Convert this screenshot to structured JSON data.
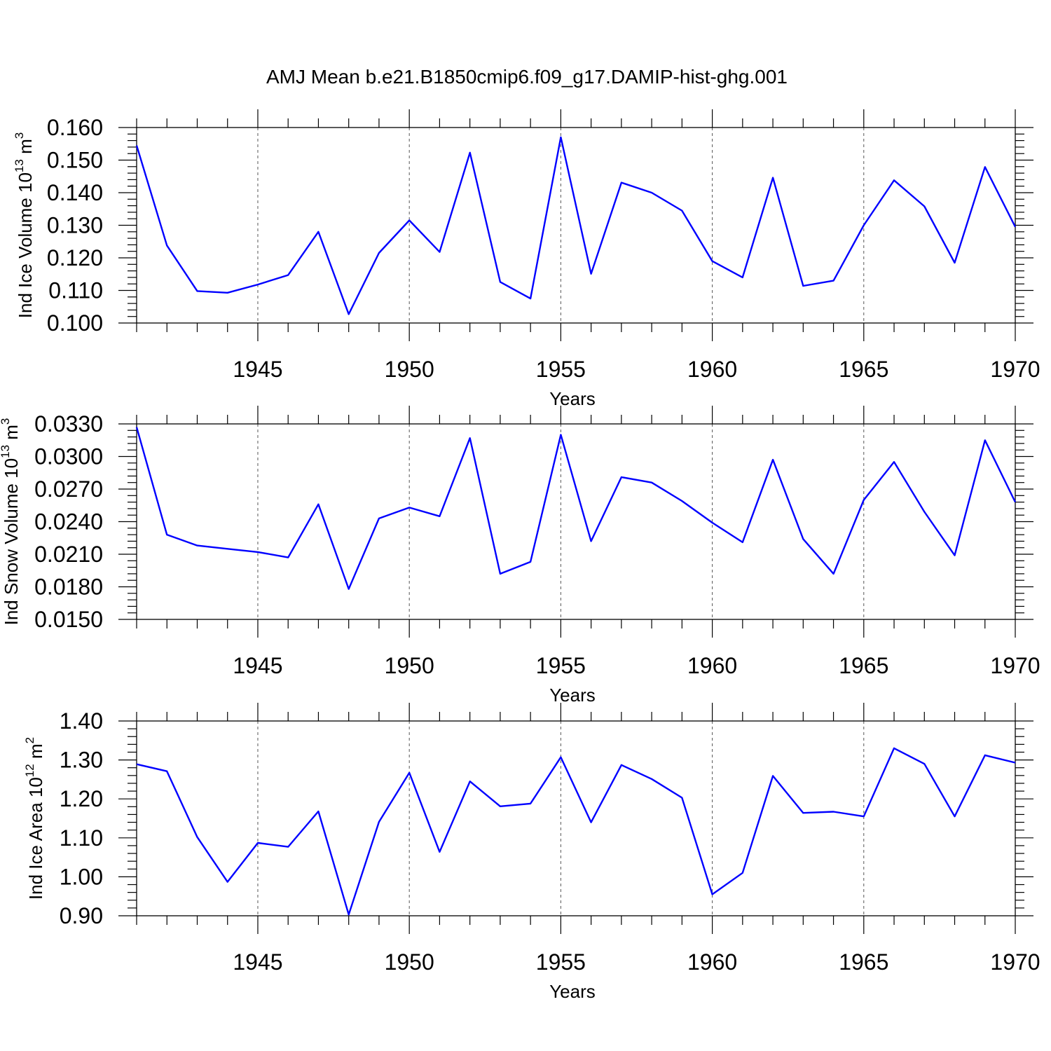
{
  "title": "AMJ Mean b.e21.B1850cmip6.f09_g17.DAMIP-hist-ghg.001",
  "line_color": "#0000ff",
  "chart_data": [
    {
      "type": "line",
      "ylabel": {
        "text": "Ind Ice Volume 10",
        "sup": "13",
        "unit": " m",
        "unit_sup": "3"
      },
      "xlabel": "Years",
      "x": [
        1941,
        1942,
        1943,
        1944,
        1945,
        1946,
        1947,
        1948,
        1949,
        1950,
        1951,
        1952,
        1953,
        1954,
        1955,
        1956,
        1957,
        1958,
        1959,
        1960,
        1961,
        1962,
        1963,
        1964,
        1965,
        1966,
        1967,
        1968,
        1969,
        1970
      ],
      "values": [
        0.1545,
        0.1238,
        0.1098,
        0.1093,
        0.1118,
        0.1147,
        0.128,
        0.1027,
        0.1215,
        0.1315,
        0.1218,
        0.1523,
        0.1126,
        0.1075,
        0.157,
        0.1151,
        0.1431,
        0.14,
        0.1345,
        0.119,
        0.114,
        0.1446,
        0.1114,
        0.113,
        0.13,
        0.1438,
        0.1358,
        0.1185,
        0.1479,
        0.1295
      ],
      "ylim": [
        0.1,
        0.16
      ],
      "yticks": [
        "0.100",
        "0.110",
        "0.120",
        "0.130",
        "0.140",
        "0.150",
        "0.160"
      ],
      "xlim": [
        1941,
        1970
      ],
      "xticks": [
        "1945",
        "1950",
        "1955",
        "1960",
        "1965",
        "1970"
      ],
      "grid": "vertical dashed at labeled years"
    },
    {
      "type": "line",
      "ylabel": {
        "text": "Ind Snow Volume 10",
        "sup": "13",
        "unit": " m",
        "unit_sup": "3"
      },
      "xlabel": "Years",
      "x": [
        1941,
        1942,
        1943,
        1944,
        1945,
        1946,
        1947,
        1948,
        1949,
        1950,
        1951,
        1952,
        1953,
        1954,
        1955,
        1956,
        1957,
        1958,
        1959,
        1960,
        1961,
        1962,
        1963,
        1964,
        1965,
        1966,
        1967,
        1968,
        1969,
        1970
      ],
      "values": [
        0.0327,
        0.0228,
        0.0218,
        0.0215,
        0.0212,
        0.0207,
        0.0256,
        0.0178,
        0.0243,
        0.0253,
        0.0245,
        0.0317,
        0.0192,
        0.0203,
        0.032,
        0.0222,
        0.0281,
        0.0276,
        0.0259,
        0.0239,
        0.0221,
        0.0297,
        0.0224,
        0.0192,
        0.026,
        0.0295,
        0.0249,
        0.0209,
        0.0315,
        0.0258
      ],
      "ylim": [
        0.015,
        0.033
      ],
      "yticks": [
        "0.0150",
        "0.0180",
        "0.0210",
        "0.0240",
        "0.0270",
        "0.0300",
        "0.0330"
      ],
      "xlim": [
        1941,
        1970
      ],
      "xticks": [
        "1945",
        "1950",
        "1955",
        "1960",
        "1965",
        "1970"
      ],
      "grid": "vertical dashed at labeled years"
    },
    {
      "type": "line",
      "ylabel": {
        "text": "Ind Ice Area 10",
        "sup": "12",
        "unit": " m",
        "unit_sup": "2"
      },
      "xlabel": "Years",
      "x": [
        1941,
        1942,
        1943,
        1944,
        1945,
        1946,
        1947,
        1948,
        1949,
        1950,
        1951,
        1952,
        1953,
        1954,
        1955,
        1956,
        1957,
        1958,
        1959,
        1960,
        1961,
        1962,
        1963,
        1964,
        1965,
        1966,
        1967,
        1968,
        1969,
        1970
      ],
      "values": [
        1.289,
        1.271,
        1.102,
        0.987,
        1.087,
        1.077,
        1.168,
        0.903,
        1.141,
        1.267,
        1.064,
        1.245,
        1.181,
        1.188,
        1.307,
        1.14,
        1.287,
        1.251,
        1.203,
        0.955,
        1.01,
        1.259,
        1.164,
        1.167,
        1.155,
        1.33,
        1.29,
        1.155,
        1.312,
        1.293
      ],
      "ylim": [
        0.9,
        1.4
      ],
      "yticks": [
        "0.90",
        "1.00",
        "1.10",
        "1.20",
        "1.30",
        "1.40"
      ],
      "xlim": [
        1941,
        1970
      ],
      "xticks": [
        "1945",
        "1950",
        "1955",
        "1960",
        "1965",
        "1970"
      ],
      "grid": "vertical dashed at labeled years"
    }
  ]
}
